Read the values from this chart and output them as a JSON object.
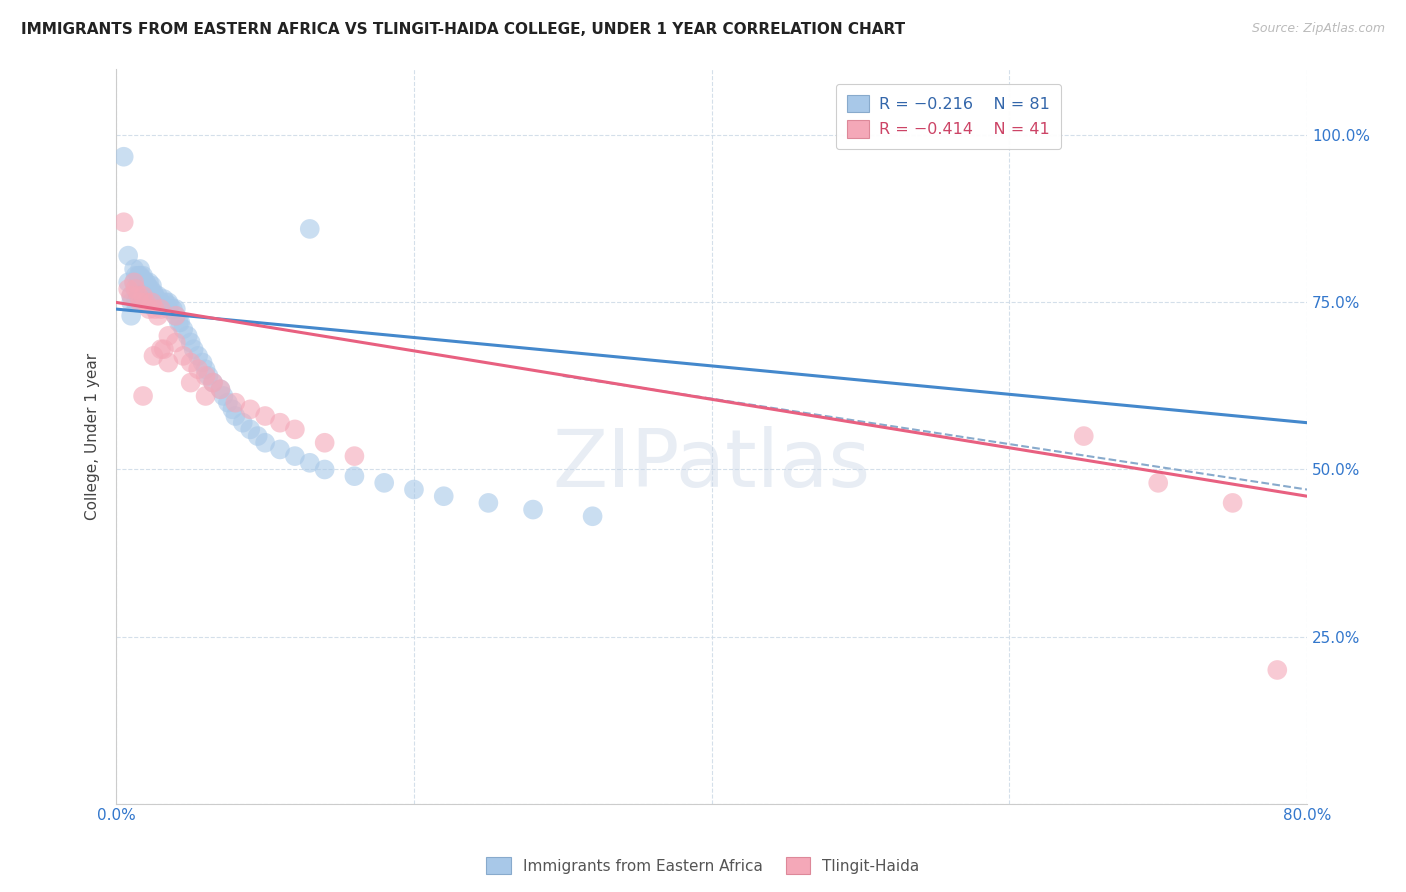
{
  "title": "IMMIGRANTS FROM EASTERN AFRICA VS TLINGIT-HAIDA COLLEGE, UNDER 1 YEAR CORRELATION CHART",
  "source": "Source: ZipAtlas.com",
  "ylabel": "College, Under 1 year",
  "x_min": 0.0,
  "x_max": 0.8,
  "y_min": 0.0,
  "y_max": 1.1,
  "legend_r_blue": "R = −0.216",
  "legend_n_blue": "N = 81",
  "legend_r_pink": "R = −0.414",
  "legend_n_pink": "N = 41",
  "blue_color": "#a8c8e8",
  "pink_color": "#f4a8b8",
  "blue_line_color": "#4488cc",
  "pink_line_color": "#e86080",
  "dashed_line_color": "#88aacc",
  "grid_color": "#d0dce8",
  "title_color": "#222222",
  "axis_label_color": "#444444",
  "tick_color": "#3377cc",
  "watermark": "ZIPatlas",
  "blue_scatter_x": [
    0.005,
    0.008,
    0.008,
    0.01,
    0.01,
    0.01,
    0.012,
    0.012,
    0.013,
    0.013,
    0.013,
    0.015,
    0.015,
    0.015,
    0.015,
    0.016,
    0.016,
    0.016,
    0.017,
    0.017,
    0.018,
    0.018,
    0.018,
    0.019,
    0.02,
    0.02,
    0.02,
    0.021,
    0.022,
    0.022,
    0.023,
    0.023,
    0.024,
    0.025,
    0.025,
    0.026,
    0.027,
    0.028,
    0.028,
    0.03,
    0.03,
    0.032,
    0.033,
    0.035,
    0.035,
    0.036,
    0.038,
    0.04,
    0.04,
    0.042,
    0.043,
    0.045,
    0.048,
    0.05,
    0.052,
    0.055,
    0.058,
    0.06,
    0.062,
    0.065,
    0.07,
    0.072,
    0.075,
    0.078,
    0.08,
    0.085,
    0.09,
    0.095,
    0.1,
    0.11,
    0.12,
    0.13,
    0.14,
    0.16,
    0.18,
    0.2,
    0.22,
    0.25,
    0.28,
    0.32,
    0.13
  ],
  "blue_scatter_y": [
    0.968,
    0.82,
    0.78,
    0.76,
    0.75,
    0.73,
    0.8,
    0.78,
    0.79,
    0.77,
    0.75,
    0.79,
    0.78,
    0.77,
    0.76,
    0.8,
    0.79,
    0.78,
    0.77,
    0.76,
    0.79,
    0.785,
    0.77,
    0.775,
    0.78,
    0.77,
    0.76,
    0.775,
    0.78,
    0.765,
    0.77,
    0.76,
    0.775,
    0.765,
    0.755,
    0.76,
    0.755,
    0.75,
    0.76,
    0.75,
    0.745,
    0.755,
    0.75,
    0.75,
    0.74,
    0.745,
    0.74,
    0.73,
    0.74,
    0.72,
    0.72,
    0.71,
    0.7,
    0.69,
    0.68,
    0.67,
    0.66,
    0.65,
    0.64,
    0.63,
    0.62,
    0.61,
    0.6,
    0.59,
    0.58,
    0.57,
    0.56,
    0.55,
    0.54,
    0.53,
    0.52,
    0.51,
    0.5,
    0.49,
    0.48,
    0.47,
    0.46,
    0.45,
    0.44,
    0.43,
    0.86
  ],
  "pink_scatter_x": [
    0.005,
    0.008,
    0.01,
    0.012,
    0.013,
    0.015,
    0.016,
    0.018,
    0.02,
    0.022,
    0.024,
    0.026,
    0.028,
    0.03,
    0.032,
    0.035,
    0.04,
    0.045,
    0.05,
    0.055,
    0.06,
    0.065,
    0.07,
    0.08,
    0.09,
    0.1,
    0.11,
    0.12,
    0.14,
    0.16,
    0.018,
    0.025,
    0.03,
    0.035,
    0.04,
    0.05,
    0.06,
    0.65,
    0.7,
    0.75,
    0.78
  ],
  "pink_scatter_y": [
    0.87,
    0.77,
    0.76,
    0.78,
    0.77,
    0.76,
    0.75,
    0.76,
    0.75,
    0.74,
    0.75,
    0.74,
    0.73,
    0.74,
    0.68,
    0.7,
    0.69,
    0.67,
    0.66,
    0.65,
    0.64,
    0.63,
    0.62,
    0.6,
    0.59,
    0.58,
    0.57,
    0.56,
    0.54,
    0.52,
    0.61,
    0.67,
    0.68,
    0.66,
    0.73,
    0.63,
    0.61,
    0.55,
    0.48,
    0.45,
    0.2
  ],
  "blue_trend_x": [
    0.0,
    0.8
  ],
  "blue_trend_y": [
    0.74,
    0.57
  ],
  "pink_trend_x": [
    0.0,
    0.8
  ],
  "pink_trend_y": [
    0.75,
    0.46
  ],
  "dashed_trend_x": [
    0.3,
    0.8
  ],
  "dashed_trend_y": [
    0.64,
    0.47
  ]
}
